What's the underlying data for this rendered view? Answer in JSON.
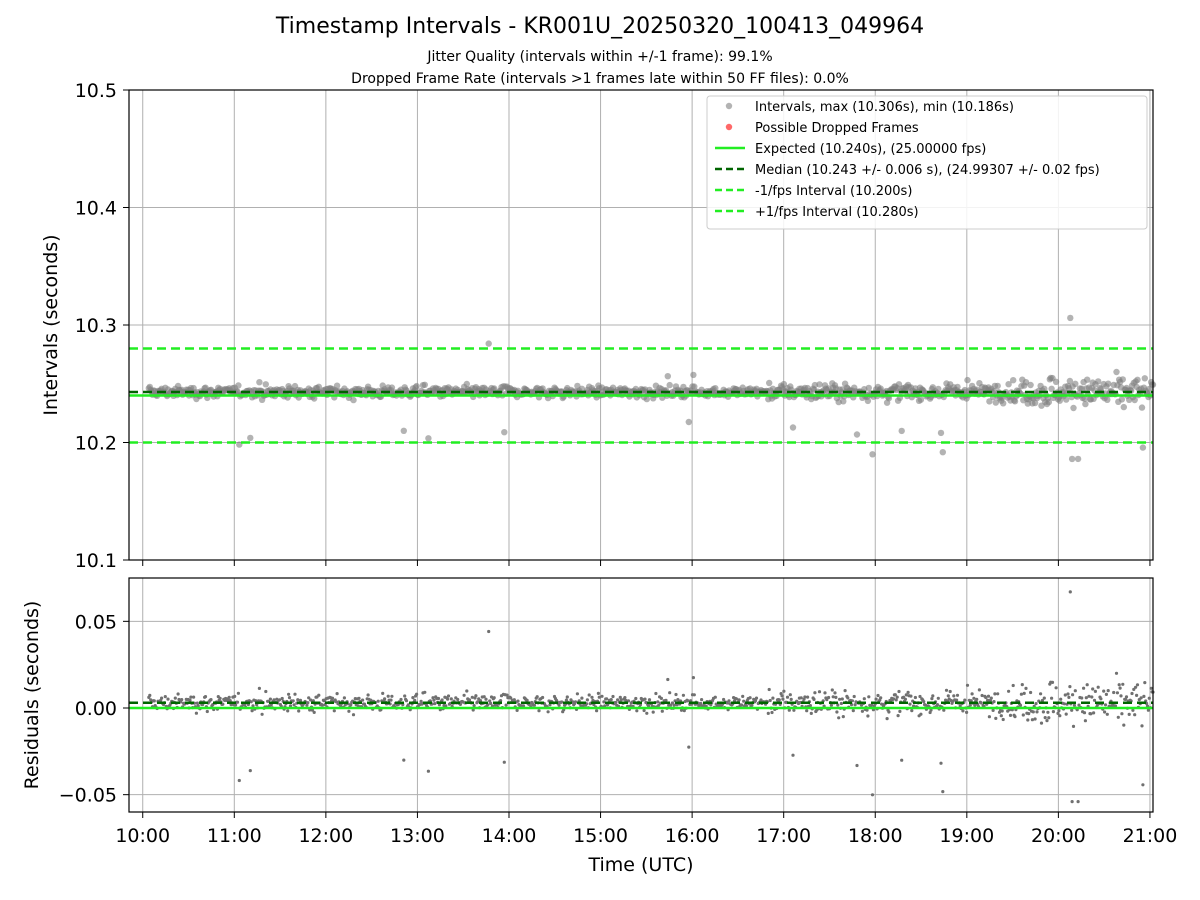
{
  "chart_data": [
    {
      "type": "scatter",
      "title": "Timestamp Intervals - KR001U_20250320_100413_049964",
      "subtitle_lines": [
        "Jitter Quality (intervals within +/-1 frame): 99.1%",
        "Dropped Frame Rate (intervals >1 frames late within 50 FF files): 0.0%"
      ],
      "ylabel": "Intervals (seconds)",
      "ylim": [
        10.1,
        10.5
      ],
      "y_ticks": [
        "10.1",
        "10.2",
        "10.3",
        "10.4",
        "10.5"
      ],
      "x_ticks": [
        "10:00",
        "11:00",
        "12:00",
        "13:00",
        "14:00",
        "15:00",
        "16:00",
        "17:00",
        "18:00",
        "19:00",
        "20:00",
        "21:00"
      ],
      "xlim": [
        "09:51",
        "21:02"
      ],
      "grid": true,
      "legend_position": "top-right",
      "legend": [
        "Intervals, max (10.306s), min (10.186s)",
        "Possible Dropped Frames",
        "Expected (10.240s), (25.00000 fps)",
        "Median (10.243 +/- 0.006 s), (24.99307 +/- 0.02 fps)",
        "-1/fps Interval (10.200s)",
        "+1/fps Interval (10.280s)"
      ],
      "reference_lines": {
        "expected": 10.24,
        "median": 10.243,
        "minus_one_fps": 10.2,
        "plus_one_fps": 10.28
      },
      "intervals_summary": {
        "start": "10:04",
        "end": "21:02",
        "max": 10.306,
        "min": 10.186,
        "median": 10.243,
        "std": 0.006,
        "count_approx": 3850
      },
      "dropped_frames": [],
      "colors": {
        "intervals": "#808080",
        "dropped": "#ff4d4d",
        "expected": "#22ee22",
        "median": "#006400",
        "fps_bounds": "#22ee22"
      }
    },
    {
      "type": "scatter",
      "xlabel": "Time (UTC)",
      "ylabel": "Residuals (seconds)",
      "ylim": [
        -0.06,
        0.075
      ],
      "y_ticks": [
        "−0.05",
        "0.00",
        "0.05"
      ],
      "x_ticks": [
        "10:00",
        "11:00",
        "12:00",
        "13:00",
        "14:00",
        "15:00",
        "16:00",
        "17:00",
        "18:00",
        "19:00",
        "20:00",
        "21:00"
      ],
      "grid": true,
      "reference_lines": {
        "zero": 0.0,
        "median_offset": 0.003
      },
      "residuals_summary": {
        "max": 0.067,
        "min": -0.054
      },
      "colors": {
        "points": "#707070",
        "zero": "#22ee22",
        "median": "#006400"
      }
    }
  ]
}
